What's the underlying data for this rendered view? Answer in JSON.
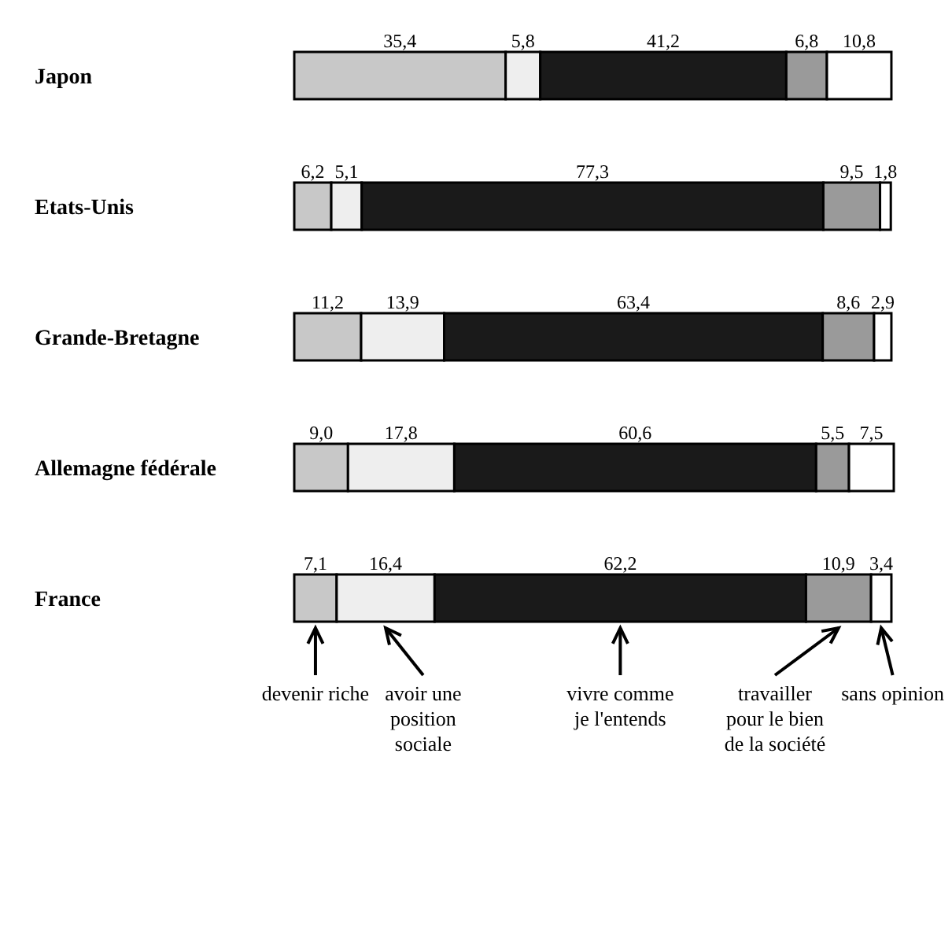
{
  "chart_data": {
    "type": "bar",
    "orientation": "horizontal",
    "stacked": true,
    "legend": "bottom",
    "categories": [
      "Japon",
      "Etats-Unis",
      "Grande-Bretagne",
      "Allemagne fédérale",
      "France"
    ],
    "series": [
      {
        "name": "devenir riche",
        "color": "#c8c8c8",
        "values": [
          35.4,
          6.2,
          11.2,
          9.0,
          7.1
        ],
        "value_labels": [
          "35,4",
          "6,2",
          "11,2",
          "9,0",
          "7,1"
        ]
      },
      {
        "name": "avoir une position sociale",
        "color": "#eeeeee",
        "values": [
          5.8,
          5.1,
          13.9,
          17.8,
          16.4
        ],
        "value_labels": [
          "5,8",
          "5,1",
          "13,9",
          "17,8",
          "16,4"
        ]
      },
      {
        "name": "vivre comme je l'entends",
        "color": "#1a1a1a",
        "values": [
          41.2,
          77.3,
          63.4,
          60.6,
          62.2
        ],
        "value_labels": [
          "41,2",
          "77,3",
          "63,4",
          "60,6",
          "62,2"
        ]
      },
      {
        "name": "travailler pour le bien de la société",
        "color": "#9a9a9a",
        "values": [
          6.8,
          9.5,
          8.6,
          5.5,
          10.9
        ],
        "value_labels": [
          "6,8",
          "9,5",
          "8,6",
          "5,5",
          "10,9"
        ]
      },
      {
        "name": "sans opinion",
        "color": "#ffffff",
        "values": [
          10.8,
          1.8,
          2.9,
          7.5,
          3.4
        ],
        "value_labels": [
          "10,8",
          "1,8",
          "2,9",
          "7,5",
          "3,4"
        ]
      }
    ]
  }
}
